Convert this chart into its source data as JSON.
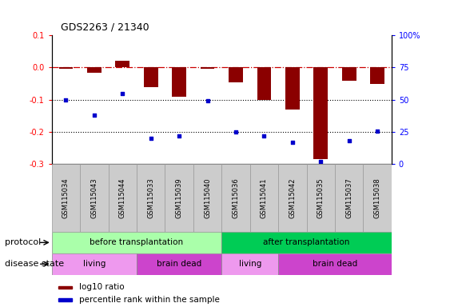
{
  "title": "GDS2263 / 21340",
  "samples": [
    "GSM115034",
    "GSM115043",
    "GSM115044",
    "GSM115033",
    "GSM115039",
    "GSM115040",
    "GSM115036",
    "GSM115041",
    "GSM115042",
    "GSM115035",
    "GSM115037",
    "GSM115038"
  ],
  "log10_ratio": [
    -0.005,
    -0.015,
    0.02,
    -0.06,
    -0.09,
    -0.005,
    -0.045,
    -0.1,
    -0.13,
    -0.285,
    -0.04,
    -0.05
  ],
  "percentile_rank": [
    50,
    38,
    55,
    20,
    22,
    49,
    25,
    22,
    17,
    2,
    18,
    26
  ],
  "ylim_left": [
    -0.3,
    0.1
  ],
  "ylim_right": [
    0,
    100
  ],
  "bar_color": "#8B0000",
  "dot_color": "#0000CC",
  "dashed_line_color": "#CC0000",
  "dotted_line_color": "#000000",
  "protocol_groups": [
    {
      "label": "before transplantation",
      "start": 0,
      "end": 6,
      "color": "#AAFFAA"
    },
    {
      "label": "after transplantation",
      "start": 6,
      "end": 12,
      "color": "#00CC55"
    }
  ],
  "disease_groups": [
    {
      "label": "living",
      "start": 0,
      "end": 3,
      "color": "#EE99EE"
    },
    {
      "label": "brain dead",
      "start": 3,
      "end": 6,
      "color": "#CC44CC"
    },
    {
      "label": "living",
      "start": 6,
      "end": 8,
      "color": "#EE99EE"
    },
    {
      "label": "brain dead",
      "start": 8,
      "end": 12,
      "color": "#CC44CC"
    }
  ],
  "legend_labels": [
    "log10 ratio",
    "percentile rank within the sample"
  ],
  "legend_colors": [
    "#8B0000",
    "#0000CC"
  ],
  "left_yticks": [
    0.1,
    0.0,
    -0.1,
    -0.2,
    -0.3
  ],
  "right_yticks": [
    100,
    75,
    50,
    25,
    0
  ],
  "sample_bg_color": "#CCCCCC",
  "sample_edge_color": "#999999"
}
